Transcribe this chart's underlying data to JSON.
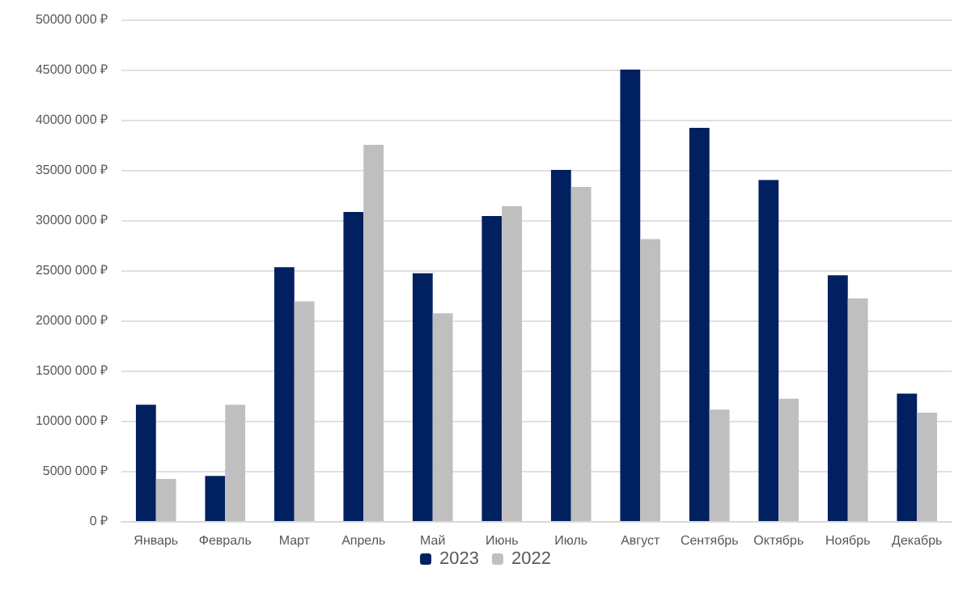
{
  "chart_data": {
    "type": "bar",
    "categories": [
      "Январь",
      "Февраль",
      "Март",
      "Апрель",
      "Май",
      "Июнь",
      "Июль",
      "Август",
      "Сентябрь",
      "Октябрь",
      "Ноябрь",
      "Декабрь"
    ],
    "series": [
      {
        "name": "2023",
        "color": "#002060",
        "values": [
          11600000,
          4500000,
          25300000,
          30800000,
          24700000,
          30400000,
          35000000,
          45000000,
          39200000,
          34000000,
          24500000,
          12700000
        ]
      },
      {
        "name": "2022",
        "color": "#bfbfbf",
        "values": [
          4200000,
          11600000,
          21900000,
          37500000,
          20700000,
          31400000,
          33300000,
          28100000,
          11100000,
          12200000,
          22200000,
          10800000
        ]
      }
    ],
    "ylim": [
      0,
      50000000
    ],
    "yticks": [
      {
        "value": 0,
        "label": "0 ₽"
      },
      {
        "value": 5000000,
        "label": "5000 000 ₽"
      },
      {
        "value": 10000000,
        "label": "10000 000 ₽"
      },
      {
        "value": 15000000,
        "label": "15000 000 ₽"
      },
      {
        "value": 20000000,
        "label": "20000 000 ₽"
      },
      {
        "value": 25000000,
        "label": "25000 000 ₽"
      },
      {
        "value": 30000000,
        "label": "30000 000 ₽"
      },
      {
        "value": 35000000,
        "label": "35000 000 ₽"
      },
      {
        "value": 40000000,
        "label": "40000 000 ₽"
      },
      {
        "value": 45000000,
        "label": "45000 000 ₽"
      },
      {
        "value": 50000000,
        "label": "50000 000 ₽"
      }
    ],
    "grid": "y",
    "legend": "bottom"
  }
}
